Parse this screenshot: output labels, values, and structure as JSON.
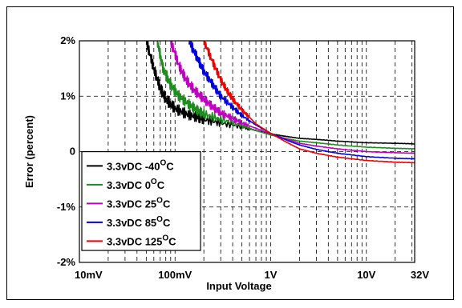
{
  "chart_data": {
    "type": "line",
    "title": "",
    "xlabel": "Input Voltage",
    "ylabel": "Error (percent)",
    "x_scale": "log",
    "xlim": [
      0.01,
      32
    ],
    "ylim": [
      -2,
      2
    ],
    "grid": true,
    "legend_position": "bottom-left",
    "x_ticks": [
      {
        "value": 0.01,
        "label": "10mV"
      },
      {
        "value": 0.1,
        "label": "100mV"
      },
      {
        "value": 1,
        "label": "1V"
      },
      {
        "value": 10,
        "label": "10V"
      },
      {
        "value": 32,
        "label": "32V"
      }
    ],
    "y_ticks": [
      {
        "value": 2,
        "label": "2%"
      },
      {
        "value": 1,
        "label": "1%"
      },
      {
        "value": 0,
        "label": "0"
      },
      {
        "value": -1,
        "label": "-1%"
      },
      {
        "value": -2,
        "label": "-2%"
      }
    ],
    "series": [
      {
        "name": "3.3vDC -40°C",
        "legend_base": "3.3vDC -40",
        "legend_unit": "C",
        "color": "#000000",
        "x": [
          0.05,
          0.06,
          0.07,
          0.08,
          0.1,
          0.13,
          0.17,
          0.2,
          0.3,
          0.5,
          0.7,
          1,
          1.5,
          2,
          3,
          5,
          10,
          20,
          32
        ],
        "y": [
          2.0,
          1.5,
          1.15,
          0.95,
          0.78,
          0.68,
          0.62,
          0.58,
          0.52,
          0.45,
          0.38,
          0.32,
          0.27,
          0.24,
          0.22,
          0.19,
          0.16,
          0.15,
          0.14
        ]
      },
      {
        "name": "3.3vDC 0°C",
        "legend_base": "3.3vDC 0",
        "legend_unit": "C",
        "color": "#1e8c1e",
        "x": [
          0.065,
          0.075,
          0.09,
          0.11,
          0.14,
          0.17,
          0.2,
          0.3,
          0.5,
          0.7,
          1,
          1.5,
          2,
          3,
          5,
          10,
          20,
          32
        ],
        "y": [
          2.0,
          1.5,
          1.2,
          1.0,
          0.85,
          0.75,
          0.68,
          0.58,
          0.47,
          0.38,
          0.3,
          0.23,
          0.19,
          0.16,
          0.12,
          0.08,
          0.06,
          0.05
        ]
      },
      {
        "name": "3.3vDC 25°C",
        "legend_base": "3.3vDC 25",
        "legend_unit": "C",
        "color": "#c000c0",
        "x": [
          0.09,
          0.11,
          0.13,
          0.16,
          0.2,
          0.25,
          0.3,
          0.4,
          0.5,
          0.7,
          1,
          1.5,
          2,
          3,
          5,
          10,
          20,
          32
        ],
        "y": [
          2.0,
          1.55,
          1.3,
          1.1,
          0.95,
          0.8,
          0.7,
          0.6,
          0.52,
          0.42,
          0.32,
          0.22,
          0.15,
          0.1,
          0.05,
          0.0,
          -0.02,
          -0.03
        ]
      },
      {
        "name": "3.3vDC 85°C",
        "legend_base": "3.3vDC 85",
        "legend_unit": "C",
        "color": "#0000dd",
        "x": [
          0.14,
          0.17,
          0.2,
          0.25,
          0.3,
          0.4,
          0.5,
          0.7,
          1,
          1.5,
          2,
          3,
          5,
          10,
          20,
          32
        ],
        "y": [
          2.0,
          1.7,
          1.45,
          1.2,
          1.0,
          0.8,
          0.65,
          0.48,
          0.33,
          0.2,
          0.12,
          0.04,
          -0.03,
          -0.09,
          -0.12,
          -0.13
        ]
      },
      {
        "name": "3.3vDC 125°C",
        "legend_base": "3.3vDC 125",
        "legend_unit": "C",
        "color": "#ee0000",
        "x": [
          0.2,
          0.25,
          0.3,
          0.35,
          0.4,
          0.5,
          0.6,
          0.7,
          1,
          1.5,
          2,
          3,
          5,
          10,
          20,
          32
        ],
        "y": [
          2.0,
          1.6,
          1.3,
          1.1,
          0.95,
          0.75,
          0.62,
          0.5,
          0.33,
          0.16,
          0.05,
          -0.03,
          -0.1,
          -0.16,
          -0.19,
          -0.2
        ]
      }
    ]
  }
}
